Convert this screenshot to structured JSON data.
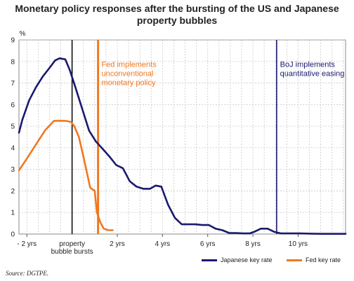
{
  "chart_data": {
    "type": "line",
    "title_lines": [
      "Monetary policy responses after the bursting of the US and Japanese",
      "property bubbles"
    ],
    "ylabel": "%",
    "ylim": [
      0,
      9
    ],
    "xlim": [
      -2.35,
      12.1
    ],
    "yticks": [
      0,
      1,
      2,
      3,
      4,
      5,
      6,
      7,
      8,
      9
    ],
    "xtick_labels": [
      {
        "x": -2,
        "label": "- 2 yrs"
      },
      {
        "x": 2,
        "label": "2 yrs"
      },
      {
        "x": 4,
        "label": "4 yrs"
      },
      {
        "x": 6,
        "label": "6 yrs"
      },
      {
        "x": 8,
        "label": "8 yrs"
      },
      {
        "x": 10,
        "label": "10 yrs"
      }
    ],
    "bubble_label_lines": [
      "property",
      "bubble bursts"
    ],
    "grid": true,
    "legend_position": "bottom-right",
    "series": [
      {
        "name": "Japanese key rate",
        "color": "#1a1a6e",
        "x": [
          -2.35,
          -2.2,
          -1.9,
          -1.6,
          -1.3,
          -1.0,
          -0.75,
          -0.55,
          -0.3,
          -0.1,
          0.15,
          0.45,
          0.75,
          1.05,
          1.35,
          1.65,
          1.95,
          2.25,
          2.55,
          2.85,
          3.15,
          3.45,
          3.7,
          3.95,
          4.25,
          4.55,
          4.85,
          5.15,
          5.45,
          5.75,
          6.05,
          6.35,
          6.65,
          6.95,
          7.25,
          7.55,
          7.85,
          8.05,
          8.35,
          8.65,
          8.95,
          9.25,
          9.6,
          10.1,
          10.5,
          11.0,
          11.5,
          12.1
        ],
        "y": [
          4.7,
          5.3,
          6.2,
          6.8,
          7.3,
          7.7,
          8.05,
          8.15,
          8.1,
          7.6,
          6.8,
          5.8,
          4.8,
          4.3,
          3.95,
          3.6,
          3.2,
          3.05,
          2.45,
          2.2,
          2.1,
          2.1,
          2.25,
          2.2,
          1.35,
          0.75,
          0.45,
          0.45,
          0.45,
          0.42,
          0.42,
          0.25,
          0.18,
          0.05,
          0.05,
          0.03,
          0.03,
          0.1,
          0.25,
          0.25,
          0.1,
          0.03,
          0.03,
          0.03,
          0.02,
          0.01,
          0.01,
          0.01
        ]
      },
      {
        "name": "Fed key rate",
        "color": "#f07820",
        "x": [
          -2.35,
          -2.0,
          -1.6,
          -1.2,
          -0.8,
          -0.5,
          -0.3,
          -0.05,
          0.1,
          0.3,
          0.5,
          0.8,
          1.0,
          1.1,
          1.25,
          1.4,
          1.6,
          1.8
        ],
        "y": [
          2.95,
          3.5,
          4.15,
          4.8,
          5.25,
          5.25,
          5.25,
          5.2,
          5.0,
          4.5,
          3.6,
          2.15,
          2.0,
          1.0,
          0.55,
          0.25,
          0.18,
          0.18
        ]
      }
    ],
    "vlines": [
      {
        "x": 0.0,
        "color": "#111111",
        "kind": "bubble"
      },
      {
        "x": 1.15,
        "color": "#f07820",
        "kind": "fed"
      },
      {
        "x": 9.05,
        "color": "#1a1a6e",
        "kind": "boj"
      }
    ],
    "annotations": [
      {
        "lines": [
          "Fed implements",
          "unconventional",
          "monetary policy"
        ],
        "color": "#f07820",
        "x": 1.3,
        "y": 7.75
      },
      {
        "lines": [
          "BoJ implements",
          "quantitative easing"
        ],
        "color": "#1a1a6e",
        "x": 9.2,
        "y": 7.75
      }
    ]
  },
  "source": "Source: DGTPE."
}
